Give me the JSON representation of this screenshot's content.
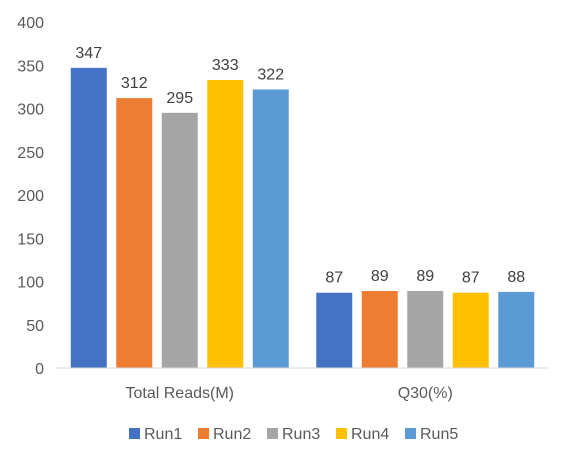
{
  "chart_data": {
    "type": "bar",
    "title": "",
    "xlabel": "",
    "ylabel": "",
    "categories": [
      "Total Reads(M)",
      "Q30(%)"
    ],
    "series": [
      {
        "name": "Run1",
        "color": "#4472c4",
        "values": [
          347,
          87
        ]
      },
      {
        "name": "Run2",
        "color": "#ed7d31",
        "values": [
          312,
          89
        ]
      },
      {
        "name": "Run3",
        "color": "#a5a5a5",
        "values": [
          295,
          89
        ]
      },
      {
        "name": "Run4",
        "color": "#ffc000",
        "values": [
          333,
          87
        ]
      },
      {
        "name": "Run5",
        "color": "#5b9bd5",
        "values": [
          322,
          88
        ]
      }
    ],
    "ylim": [
      0,
      400
    ],
    "yticks": [
      0,
      50,
      100,
      150,
      200,
      250,
      300,
      350,
      400
    ],
    "grid": false,
    "data_labels": true,
    "legend": "bottom"
  }
}
